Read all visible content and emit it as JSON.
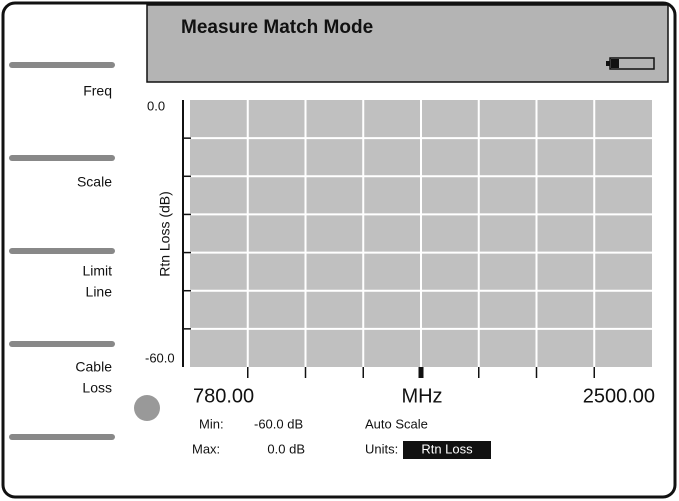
{
  "header": {
    "title": "Measure Match Mode"
  },
  "softkeys": [
    {
      "lines": [
        "Freq"
      ]
    },
    {
      "lines": [
        "Scale"
      ]
    },
    {
      "lines": [
        "Limit",
        "Line"
      ]
    },
    {
      "lines": [
        "Cable",
        "Loss"
      ]
    }
  ],
  "plot": {
    "y_top": "0.0",
    "y_bottom": "-60.0",
    "y_title": "Rtn Loss (dB)",
    "x_start": "780.00",
    "x_unit": "MHz",
    "x_stop": "2500.00"
  },
  "readouts": {
    "min_label": "Min:",
    "min_value": "-60.0 dB",
    "max_label": "Max:",
    "max_value": "0.0 dB",
    "scale_mode": "Auto Scale",
    "units_label": "Units:",
    "units_value": "Rtn Loss"
  }
}
